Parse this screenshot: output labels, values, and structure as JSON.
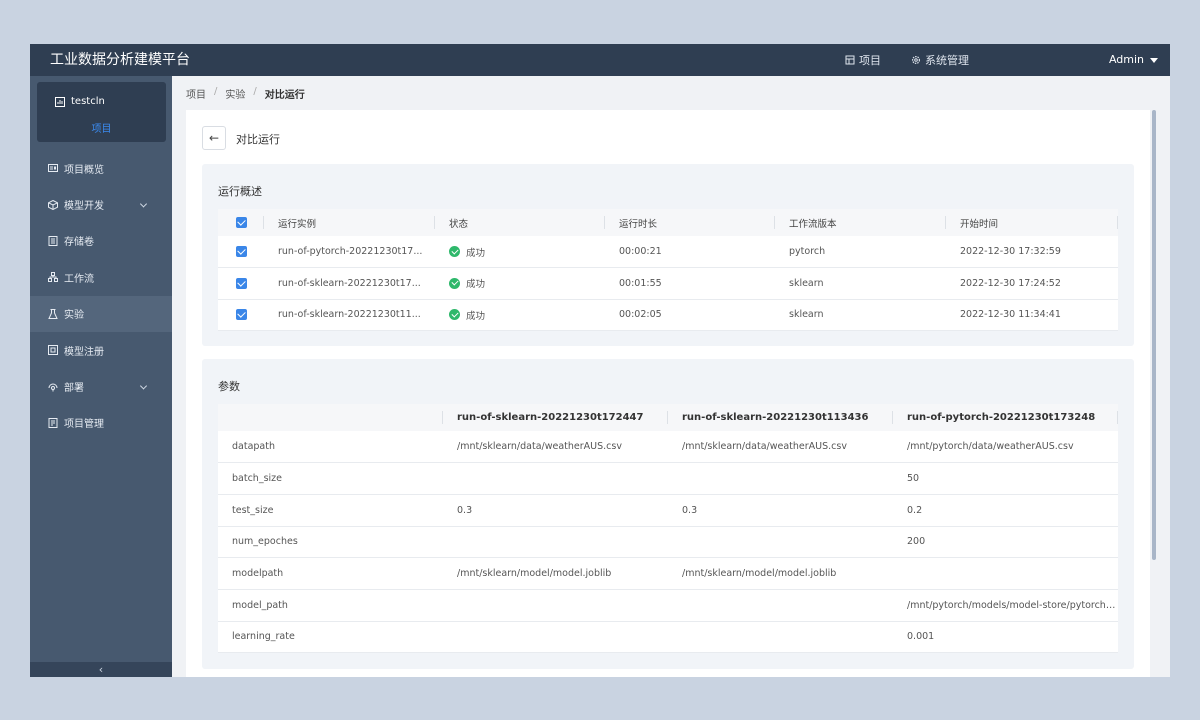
{
  "app": {
    "title": "工业数据分析建模平台"
  },
  "topnav": {
    "project_label": "项目",
    "system_label": "系统管理",
    "user_label": "Admin"
  },
  "sidebar": {
    "project_name": "testcln",
    "project_sub": "项目",
    "items": [
      {
        "label": "项目概览",
        "icon": "overview-icon"
      },
      {
        "label": "模型开发",
        "icon": "cube-icon",
        "expandable": true
      },
      {
        "label": "存储卷",
        "icon": "storage-icon"
      },
      {
        "label": "工作流",
        "icon": "workflow-icon"
      },
      {
        "label": "实验",
        "icon": "flask-icon",
        "active": true
      },
      {
        "label": "模型注册",
        "icon": "registry-icon"
      },
      {
        "label": "部署",
        "icon": "deploy-icon",
        "expandable": true
      },
      {
        "label": "项目管理",
        "icon": "manage-icon"
      }
    ],
    "collapse_glyph": "‹"
  },
  "breadcrumb": {
    "items": [
      "项目",
      "实验",
      "对比运行"
    ],
    "sep": "/"
  },
  "page": {
    "title": "对比运行",
    "back_glyph": "←"
  },
  "overview": {
    "title": "运行概述",
    "columns": [
      "运行实例",
      "状态",
      "运行时长",
      "工作流版本",
      "开始时间"
    ],
    "rows": [
      {
        "name": "run-of-pytorch-20221230t17...",
        "status": "成功",
        "duration": "00:00:21",
        "workflow": "pytorch",
        "start": "2022-12-30 17:32:59"
      },
      {
        "name": "run-of-sklearn-20221230t17...",
        "status": "成功",
        "duration": "00:01:55",
        "workflow": "sklearn",
        "start": "2022-12-30 17:24:52"
      },
      {
        "name": "run-of-sklearn-20221230t11...",
        "status": "成功",
        "duration": "00:02:05",
        "workflow": "sklearn",
        "start": "2022-12-30 11:34:41"
      }
    ]
  },
  "params": {
    "title": "参数",
    "columns": [
      "",
      "run-of-sklearn-20221230t172447",
      "run-of-sklearn-20221230t113436",
      "run-of-pytorch-20221230t173248"
    ],
    "rows": [
      [
        "datapath",
        "/mnt/sklearn/data/weatherAUS.csv",
        "/mnt/sklearn/data/weatherAUS.csv",
        "/mnt/pytorch/data/weatherAUS.csv"
      ],
      [
        "batch_size",
        "",
        "",
        "50"
      ],
      [
        "test_size",
        "0.3",
        "0.3",
        "0.2"
      ],
      [
        "num_epoches",
        "",
        "",
        "200"
      ],
      [
        "modelpath",
        "/mnt/sklearn/model/model.joblib",
        "/mnt/sklearn/model/model.joblib",
        ""
      ],
      [
        "model_path",
        "",
        "",
        "/mnt/pytorch/models/model-store/pytorcht..."
      ],
      [
        "learning_rate",
        "",
        "",
        "0.001"
      ]
    ]
  },
  "colors": {
    "accent": "#3a86e8",
    "topbar": "#2f3e52",
    "sidebar": "#47596f",
    "success": "#2eb86b"
  }
}
